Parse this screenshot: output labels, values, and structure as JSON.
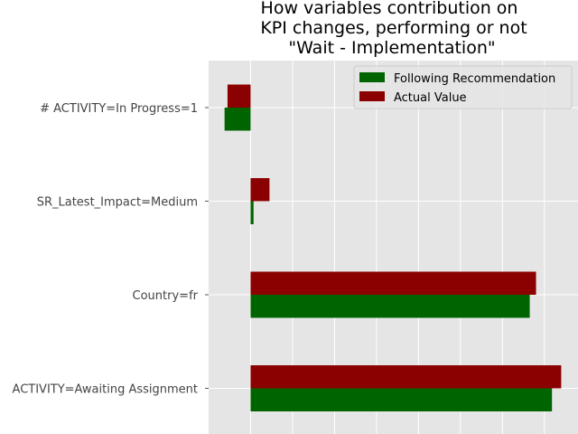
{
  "chart_data": {
    "type": "bar",
    "orientation": "horizontal",
    "title_lines": [
      "How variables contribution on",
      "KPI changes, performing or not",
      "\"Wait - Implementation\""
    ],
    "categories": [
      "# ACTIVITY=In Progress=1",
      "SR_Latest_Impact=Medium",
      "Country=fr",
      "ACTIVITY=Awaiting Assignment"
    ],
    "series": [
      {
        "name": "Following Recommendation",
        "color": "#006400",
        "values": [
          -0.062,
          0.007,
          0.665,
          0.718
        ]
      },
      {
        "name": "Actual Value",
        "color": "#8b0000",
        "values": [
          -0.055,
          0.045,
          0.68,
          0.74
        ]
      }
    ],
    "xlim": [
      -0.1,
      0.78
    ],
    "grid": true,
    "legend_position": "top-right"
  }
}
